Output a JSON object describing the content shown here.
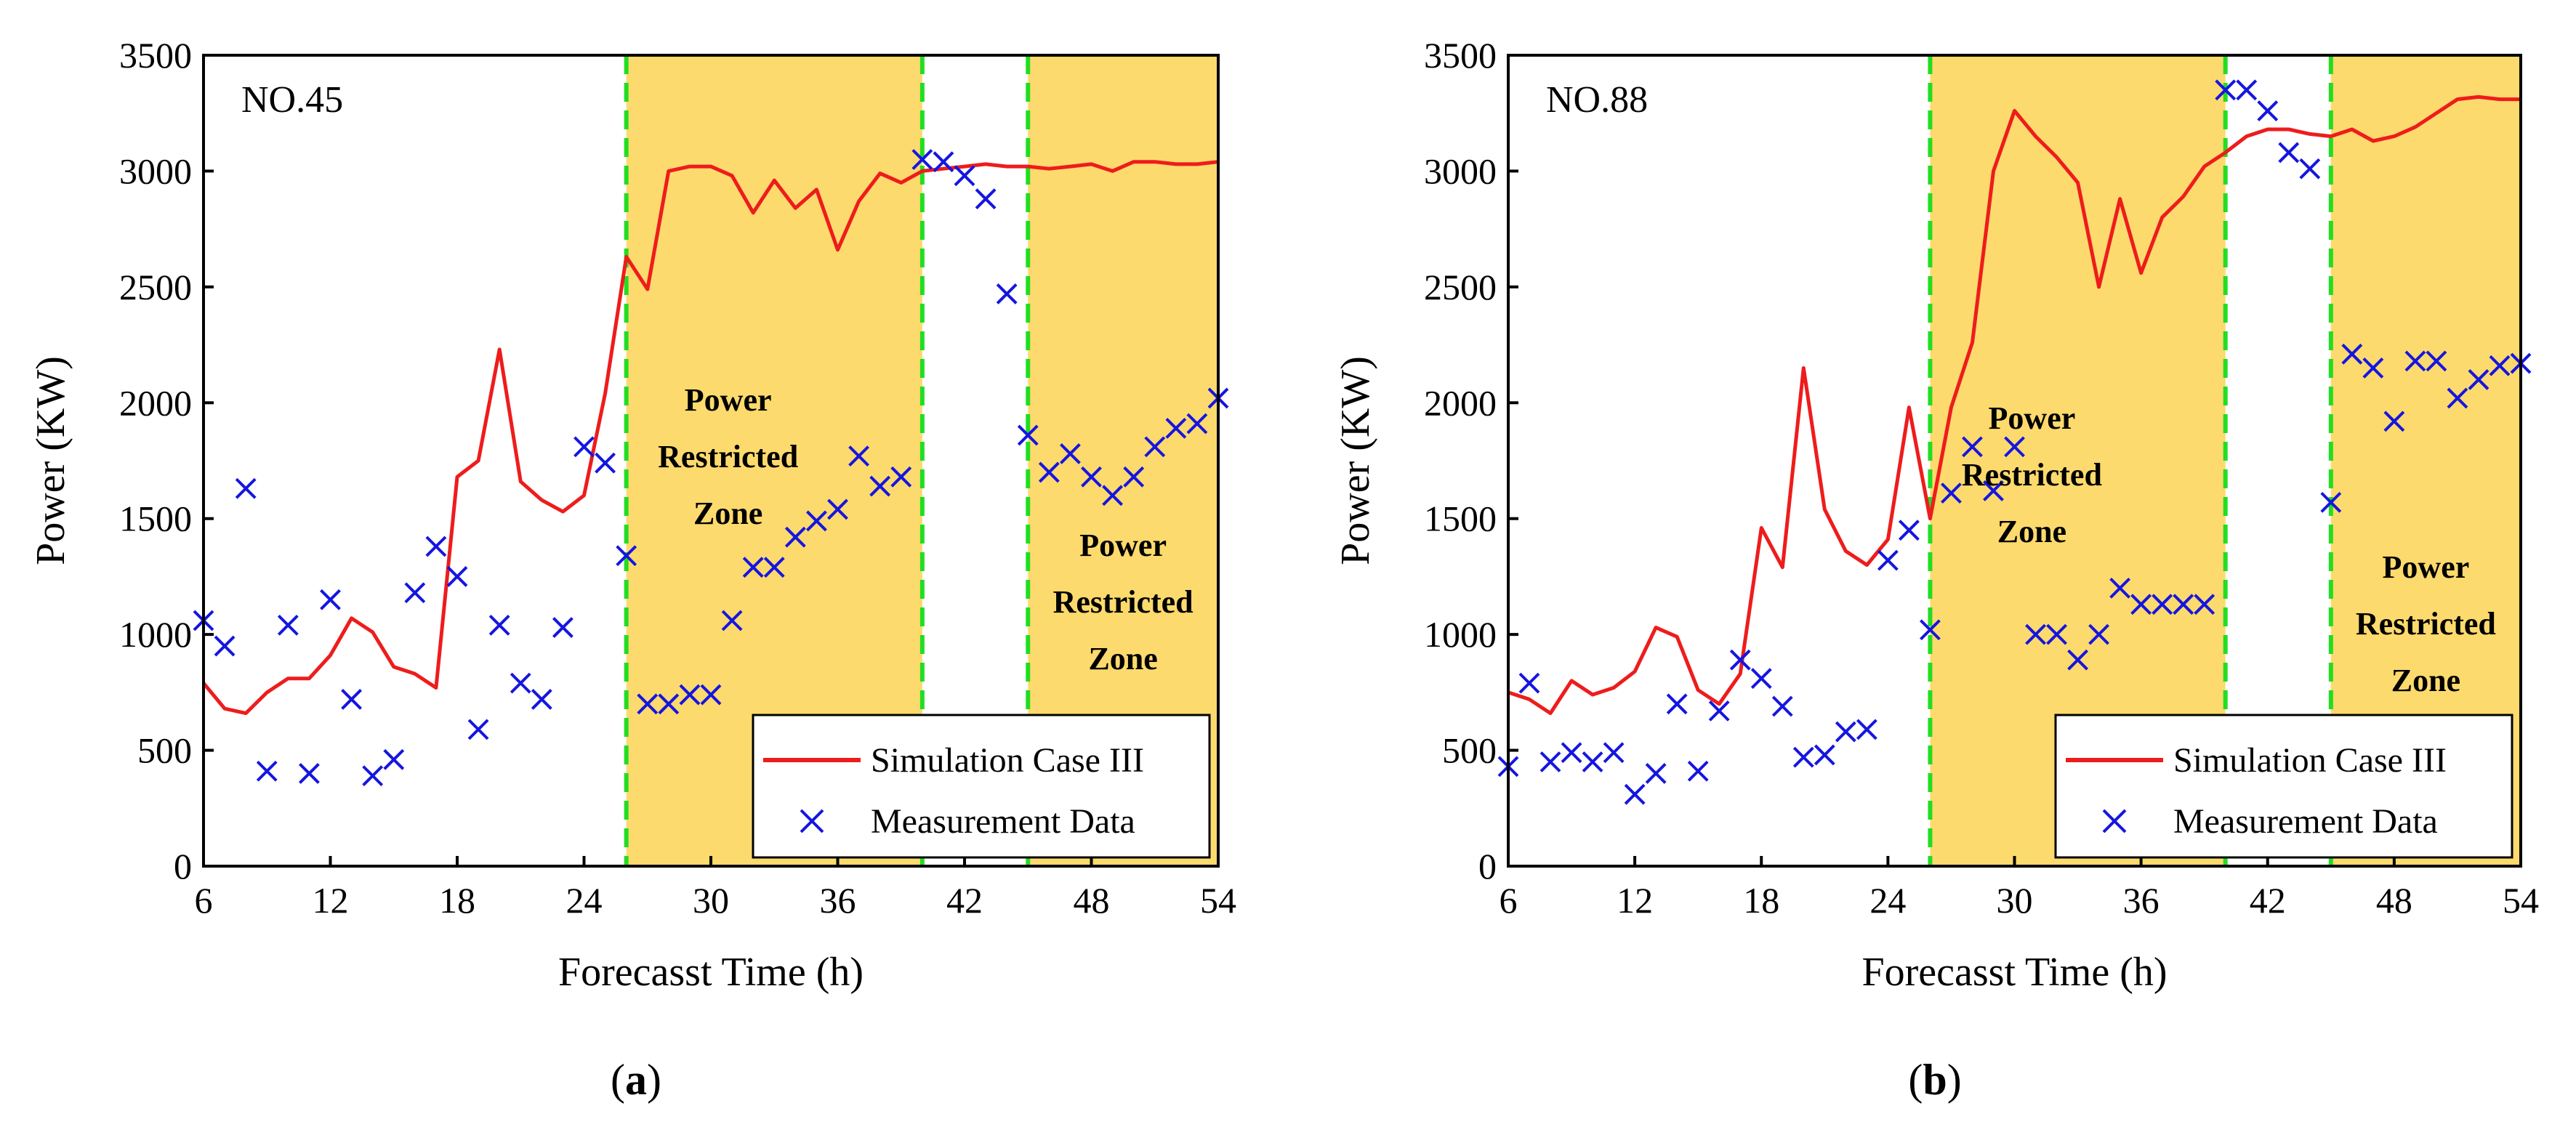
{
  "colors": {
    "zone_fill": "#FDDA6D",
    "divider": "#22DD22",
    "simulation": "#EE1C1C",
    "measurement": "#1515E0",
    "axis": "#000000"
  },
  "chart_data": [
    {
      "type": "line",
      "panel_label": "NO.45",
      "caption_letter": "a",
      "xlabel": "Forecasst Time (h)",
      "ylabel": "Power (KW)",
      "xlim": [
        6,
        54
      ],
      "ylim": [
        0,
        3500
      ],
      "xticks": [
        "6",
        "12",
        "18",
        "24",
        "30",
        "36",
        "42",
        "48",
        "54"
      ],
      "yticks": [
        "0",
        "500",
        "1000",
        "1500",
        "2000",
        "2500",
        "3000",
        "3500"
      ],
      "zones": [
        {
          "x_start": 26,
          "x_end": 40,
          "label": [
            "Power",
            "Restricted",
            "Zone"
          ]
        },
        {
          "x_start": 45,
          "x_end": 54,
          "label": [
            "Power",
            "Restricted",
            "Zone"
          ]
        }
      ],
      "dividers": [
        26,
        40,
        45
      ],
      "legend": {
        "simulation": "Simulation Case III",
        "measurement": "Measurement Data"
      },
      "series": [
        {
          "name": "Simulation Case III",
          "kind": "line",
          "x": [
            6,
            7,
            8,
            9,
            10,
            11,
            12,
            13,
            14,
            15,
            16,
            17,
            18,
            19,
            20,
            21,
            22,
            23,
            24,
            25,
            26,
            27,
            28,
            29,
            30,
            31,
            32,
            33,
            34,
            35,
            36,
            37,
            38,
            39,
            40,
            41,
            42,
            43,
            44,
            45,
            46,
            47,
            48,
            49,
            50,
            51,
            52,
            53,
            54
          ],
          "y": [
            790,
            680,
            660,
            750,
            810,
            810,
            910,
            1070,
            1010,
            860,
            830,
            770,
            1680,
            1750,
            2230,
            1660,
            1580,
            1530,
            1600,
            2040,
            2630,
            2490,
            3000,
            3020,
            3020,
            2980,
            2820,
            2960,
            2840,
            2920,
            2660,
            2870,
            2990,
            2950,
            3000,
            3010,
            3020,
            3030,
            3020,
            3020,
            3010,
            3020,
            3030,
            3000,
            3040,
            3040,
            3030,
            3030,
            3040
          ]
        },
        {
          "name": "Measurement Data",
          "kind": "scatter",
          "x": [
            6,
            7,
            8,
            9,
            10,
            11,
            12,
            13,
            14,
            15,
            16,
            17,
            18,
            19,
            20,
            21,
            22,
            23,
            24,
            25,
            26,
            27,
            28,
            29,
            30,
            31,
            32,
            33,
            34,
            35,
            36,
            37,
            38,
            39,
            40,
            41,
            42,
            43,
            44,
            45,
            46,
            47,
            48,
            49,
            50,
            51,
            52,
            53,
            54
          ],
          "y": [
            1060,
            950,
            1630,
            410,
            1040,
            400,
            1150,
            720,
            390,
            460,
            1180,
            1380,
            1250,
            590,
            1040,
            790,
            720,
            1030,
            1810,
            1740,
            1340,
            700,
            700,
            740,
            740,
            1060,
            1290,
            1290,
            1420,
            1490,
            1540,
            1770,
            1640,
            1680,
            3050,
            3040,
            2980,
            2880,
            2470,
            1860,
            1700,
            1780,
            1680,
            1600,
            1680,
            1810,
            1890,
            1910,
            2020
          ]
        }
      ]
    },
    {
      "type": "line",
      "panel_label": "NO.88",
      "caption_letter": "b",
      "xlabel": "Forecasst Time (h)",
      "ylabel": "Power (KW)",
      "xlim": [
        6,
        54
      ],
      "ylim": [
        0,
        3500
      ],
      "xticks": [
        "6",
        "12",
        "18",
        "24",
        "30",
        "36",
        "42",
        "48",
        "54"
      ],
      "yticks": [
        "0",
        "500",
        "1000",
        "1500",
        "2000",
        "2500",
        "3000",
        "3500"
      ],
      "zones": [
        {
          "x_start": 26,
          "x_end": 40,
          "label": [
            "Power",
            "Restricted",
            "Zone"
          ]
        },
        {
          "x_start": 45,
          "x_end": 54,
          "label": [
            "Power",
            "Restricted",
            "Zone"
          ]
        }
      ],
      "dividers": [
        26,
        40,
        45
      ],
      "legend": {
        "simulation": "Simulation Case III",
        "measurement": "Measurement Data"
      },
      "series": [
        {
          "name": "Simulation Case III",
          "kind": "line",
          "x": [
            6,
            7,
            8,
            9,
            10,
            11,
            12,
            13,
            14,
            15,
            16,
            17,
            18,
            19,
            20,
            21,
            22,
            23,
            24,
            25,
            26,
            27,
            28,
            29,
            30,
            31,
            32,
            33,
            34,
            35,
            36,
            37,
            38,
            39,
            40,
            41,
            42,
            43,
            44,
            45,
            46,
            47,
            48,
            49,
            50,
            51,
            52,
            53,
            54
          ],
          "y": [
            750,
            720,
            660,
            800,
            740,
            770,
            840,
            1030,
            990,
            760,
            700,
            830,
            1460,
            1290,
            2150,
            1540,
            1360,
            1300,
            1410,
            1980,
            1500,
            1980,
            2260,
            3000,
            3260,
            3150,
            3060,
            2950,
            2500,
            2880,
            2560,
            2800,
            2890,
            3020,
            3080,
            3150,
            3180,
            3180,
            3160,
            3150,
            3180,
            3130,
            3150,
            3190,
            3250,
            3310,
            3320,
            3310,
            3310
          ]
        },
        {
          "name": "Measurement Data",
          "kind": "scatter",
          "x": [
            6,
            7,
            8,
            9,
            10,
            11,
            12,
            13,
            14,
            15,
            16,
            17,
            18,
            19,
            20,
            21,
            22,
            23,
            24,
            25,
            26,
            27,
            28,
            29,
            30,
            31,
            32,
            33,
            34,
            35,
            36,
            37,
            38,
            39,
            40,
            41,
            42,
            43,
            44,
            45,
            46,
            47,
            48,
            49,
            50,
            51,
            52,
            53,
            54
          ],
          "y": [
            430,
            790,
            450,
            490,
            450,
            490,
            310,
            400,
            700,
            410,
            670,
            890,
            810,
            690,
            470,
            480,
            580,
            590,
            1320,
            1450,
            1020,
            1610,
            1810,
            1620,
            1810,
            1000,
            1000,
            890,
            1000,
            1200,
            1130,
            1130,
            1130,
            1130,
            3350,
            3350,
            3260,
            3080,
            3010,
            1570,
            2210,
            2150,
            1920,
            2180,
            2180,
            2020,
            2100,
            2160,
            2170
          ]
        }
      ]
    }
  ]
}
